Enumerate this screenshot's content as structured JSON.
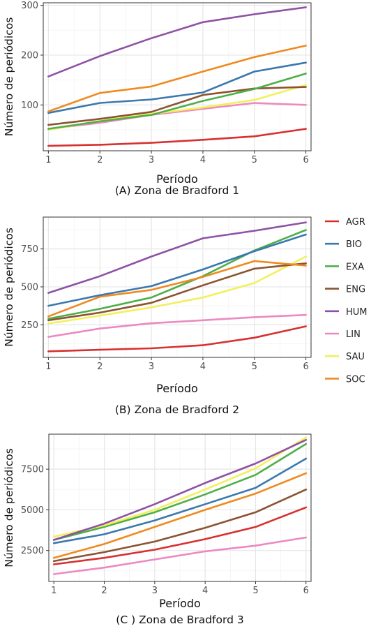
{
  "legend": {
    "items": [
      {
        "label": "AGR",
        "color": "#d7302f"
      },
      {
        "label": "BIO",
        "color": "#3a78ad"
      },
      {
        "label": "EXA",
        "color": "#4daf4a"
      },
      {
        "label": "ENG",
        "color": "#8c5331"
      },
      {
        "label": "HUM",
        "color": "#8e52a3"
      },
      {
        "label": "LIN",
        "color": "#ec89c0"
      },
      {
        "label": "SAU",
        "color": "#f2f05c"
      },
      {
        "label": "SOC",
        "color": "#ef8a1f"
      }
    ]
  },
  "chart_data": [
    {
      "type": "line",
      "caption": "(A) Zona de Bradford 1",
      "xlabel": "Período",
      "ylabel": "Número de periódicos",
      "x": [
        1,
        2,
        3,
        4,
        5,
        6
      ],
      "xlim": [
        0.9,
        6.1
      ],
      "ylim": [
        8,
        305
      ],
      "yticks": [
        100,
        200,
        300
      ],
      "grid": true,
      "legend": "right",
      "series": [
        {
          "name": "AGR",
          "color": "#d7302f",
          "values": [
            18,
            20,
            24,
            30,
            37,
            52
          ]
        },
        {
          "name": "LIN",
          "color": "#ec89c0",
          "values": [
            52,
            64,
            80,
            92,
            104,
            100
          ]
        },
        {
          "name": "SAU",
          "color": "#f2f05c",
          "values": [
            50,
            68,
            82,
            95,
            110,
            140
          ]
        },
        {
          "name": "ENG",
          "color": "#8c5331",
          "values": [
            60,
            72,
            86,
            120,
            133,
            136
          ]
        },
        {
          "name": "EXA",
          "color": "#4daf4a",
          "values": [
            52,
            67,
            80,
            108,
            132,
            163
          ]
        },
        {
          "name": "BIO",
          "color": "#3a78ad",
          "values": [
            84,
            104,
            111,
            125,
            167,
            185
          ]
        },
        {
          "name": "SOC",
          "color": "#ef8a1f",
          "values": [
            87,
            124,
            137,
            167,
            196,
            219
          ]
        },
        {
          "name": "HUM",
          "color": "#8e52a3",
          "values": [
            157,
            198,
            234,
            266,
            282,
            296
          ]
        }
      ]
    },
    {
      "type": "line",
      "caption": "(B) Zona de Bradford 2",
      "xlabel": "Período",
      "ylabel": "Número de periódicos",
      "x": [
        1,
        2,
        3,
        4,
        5,
        6
      ],
      "xlim": [
        0.9,
        6.1
      ],
      "ylim": [
        35,
        960
      ],
      "yticks": [
        250,
        500,
        750
      ],
      "grid": true,
      "legend": "right",
      "series": [
        {
          "name": "AGR",
          "color": "#d7302f",
          "values": [
            75,
            85,
            95,
            115,
            165,
            240
          ]
        },
        {
          "name": "LIN",
          "color": "#ec89c0",
          "values": [
            170,
            225,
            260,
            280,
            300,
            315
          ]
        },
        {
          "name": "SAU",
          "color": "#f2f05c",
          "values": [
            258,
            310,
            365,
            430,
            525,
            700
          ]
        },
        {
          "name": "ENG",
          "color": "#8c5331",
          "values": [
            280,
            330,
            395,
            510,
            620,
            655
          ]
        },
        {
          "name": "EXA",
          "color": "#4daf4a",
          "values": [
            290,
            355,
            430,
            570,
            740,
            875
          ]
        },
        {
          "name": "SOC",
          "color": "#ef8a1f",
          "values": [
            305,
            435,
            480,
            565,
            670,
            640
          ]
        },
        {
          "name": "BIO",
          "color": "#3a78ad",
          "values": [
            375,
            445,
            505,
            615,
            735,
            845
          ]
        },
        {
          "name": "HUM",
          "color": "#8e52a3",
          "values": [
            460,
            570,
            700,
            820,
            870,
            925
          ]
        }
      ]
    },
    {
      "type": "line",
      "caption": "(C ) Zona de Bradford 3",
      "xlabel": "Período",
      "ylabel": "Número de periódicos",
      "x": [
        1,
        2,
        3,
        4,
        5,
        6
      ],
      "xlim": [
        0.9,
        6.1
      ],
      "ylim": [
        600,
        9650
      ],
      "yticks": [
        2500,
        5000,
        7500
      ],
      "grid": true,
      "legend": "right",
      "series": [
        {
          "name": "LIN",
          "color": "#ec89c0",
          "values": [
            1050,
            1450,
            1950,
            2450,
            2800,
            3300
          ]
        },
        {
          "name": "AGR",
          "color": "#d7302f",
          "values": [
            1650,
            2050,
            2550,
            3200,
            3950,
            5150
          ]
        },
        {
          "name": "ENG",
          "color": "#8c5331",
          "values": [
            1850,
            2400,
            3050,
            3900,
            4850,
            6250
          ]
        },
        {
          "name": "SOC",
          "color": "#ef8a1f",
          "values": [
            2050,
            2900,
            3950,
            5000,
            6000,
            7250
          ]
        },
        {
          "name": "BIO",
          "color": "#3a78ad",
          "values": [
            2950,
            3500,
            4350,
            5350,
            6350,
            8150
          ]
        },
        {
          "name": "EXA",
          "color": "#4daf4a",
          "values": [
            3150,
            3950,
            4850,
            5950,
            7150,
            9050
          ]
        },
        {
          "name": "SAU",
          "color": "#f2f05c",
          "values": [
            3350,
            4050,
            5000,
            6250,
            7550,
            9450
          ]
        },
        {
          "name": "HUM",
          "color": "#8e52a3",
          "values": [
            3150,
            4150,
            5350,
            6650,
            7850,
            9300
          ]
        }
      ]
    }
  ]
}
